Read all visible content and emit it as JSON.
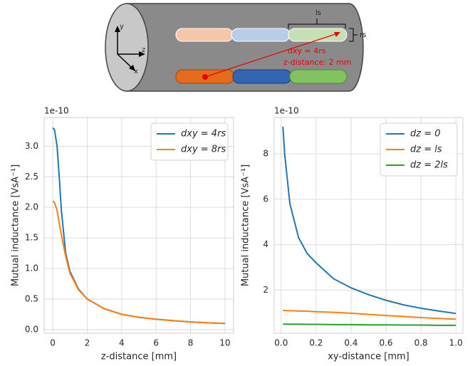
{
  "diagram": {
    "axis_y": "y",
    "axis_z": "z",
    "axis_x": "x",
    "length_label": "ls",
    "radius_label": "rs",
    "distance_label": "dxy = 4rs",
    "z_distance_label": "z-distance: 2 mm"
  },
  "chart_data": [
    {
      "type": "line",
      "y_offset_label": "1e-10",
      "xlabel": "z-distance [mm]",
      "ylabel": "Mutual inductance [VsA⁻¹]",
      "x": [
        0,
        0.1,
        0.25,
        0.4,
        0.5,
        0.75,
        1,
        1.5,
        2,
        3,
        4,
        5,
        6,
        7,
        8,
        9,
        10
      ],
      "series": [
        {
          "name": "dxy = 4rs",
          "color": "#1f77b4",
          "values": [
            3.3,
            3.27,
            3.0,
            2.4,
            1.95,
            1.25,
            0.95,
            0.66,
            0.5,
            0.34,
            0.25,
            0.2,
            0.17,
            0.145,
            0.125,
            0.11,
            0.1
          ]
        },
        {
          "name": "dxy = 8rs",
          "color": "#ff7f0e",
          "values": [
            2.1,
            2.08,
            1.95,
            1.7,
            1.55,
            1.2,
            0.92,
            0.65,
            0.5,
            0.34,
            0.25,
            0.2,
            0.17,
            0.145,
            0.125,
            0.11,
            0.1
          ]
        }
      ],
      "xlim": [
        -0.5,
        10.5
      ],
      "xticks": [
        0,
        2,
        4,
        6,
        8,
        10
      ],
      "ylim": [
        -0.06,
        3.47
      ],
      "yticks": [
        {
          "value": 0,
          "label": "0.0"
        },
        0.5,
        {
          "value": 1,
          "label": "1.0"
        },
        1.5,
        {
          "value": 2,
          "label": "2.0"
        },
        2.5,
        {
          "value": 3,
          "label": "3.0"
        }
      ],
      "grid": true,
      "legend": "upper right"
    },
    {
      "type": "line",
      "y_offset_label": "1e-10",
      "xlabel": "xy-distance [mm]",
      "ylabel": "Mutual inductance [VsA⁻¹]",
      "x": [
        0.01,
        0.02,
        0.05,
        0.1,
        0.15,
        0.2,
        0.3,
        0.4,
        0.5,
        0.6,
        0.7,
        0.8,
        0.9,
        1.0
      ],
      "series": [
        {
          "name": "dz = 0",
          "color": "#1f77b4",
          "values": [
            9.2,
            8.0,
            5.8,
            4.3,
            3.6,
            3.2,
            2.5,
            2.1,
            1.8,
            1.55,
            1.35,
            1.2,
            1.08,
            0.97
          ]
        },
        {
          "name": "dz = ls",
          "color": "#ff7f0e",
          "values": [
            1.1,
            1.1,
            1.09,
            1.08,
            1.07,
            1.05,
            1.02,
            0.98,
            0.93,
            0.88,
            0.84,
            0.79,
            0.75,
            0.72
          ]
        },
        {
          "name": "dz = 2ls",
          "color": "#2ca02c",
          "values": [
            0.5,
            0.5,
            0.5,
            0.5,
            0.49,
            0.49,
            0.48,
            0.48,
            0.47,
            0.47,
            0.46,
            0.46,
            0.45,
            0.45
          ]
        }
      ],
      "xlim": [
        -0.04,
        1.04
      ],
      "xticks": [
        {
          "value": 0,
          "label": "0.0"
        },
        0.2,
        0.4,
        0.6,
        0.8,
        {
          "value": 1,
          "label": "1.0"
        }
      ],
      "ylim": [
        0.1,
        9.6
      ],
      "yticks": [
        2,
        4,
        6,
        8
      ],
      "grid": true,
      "legend": "upper right"
    }
  ]
}
